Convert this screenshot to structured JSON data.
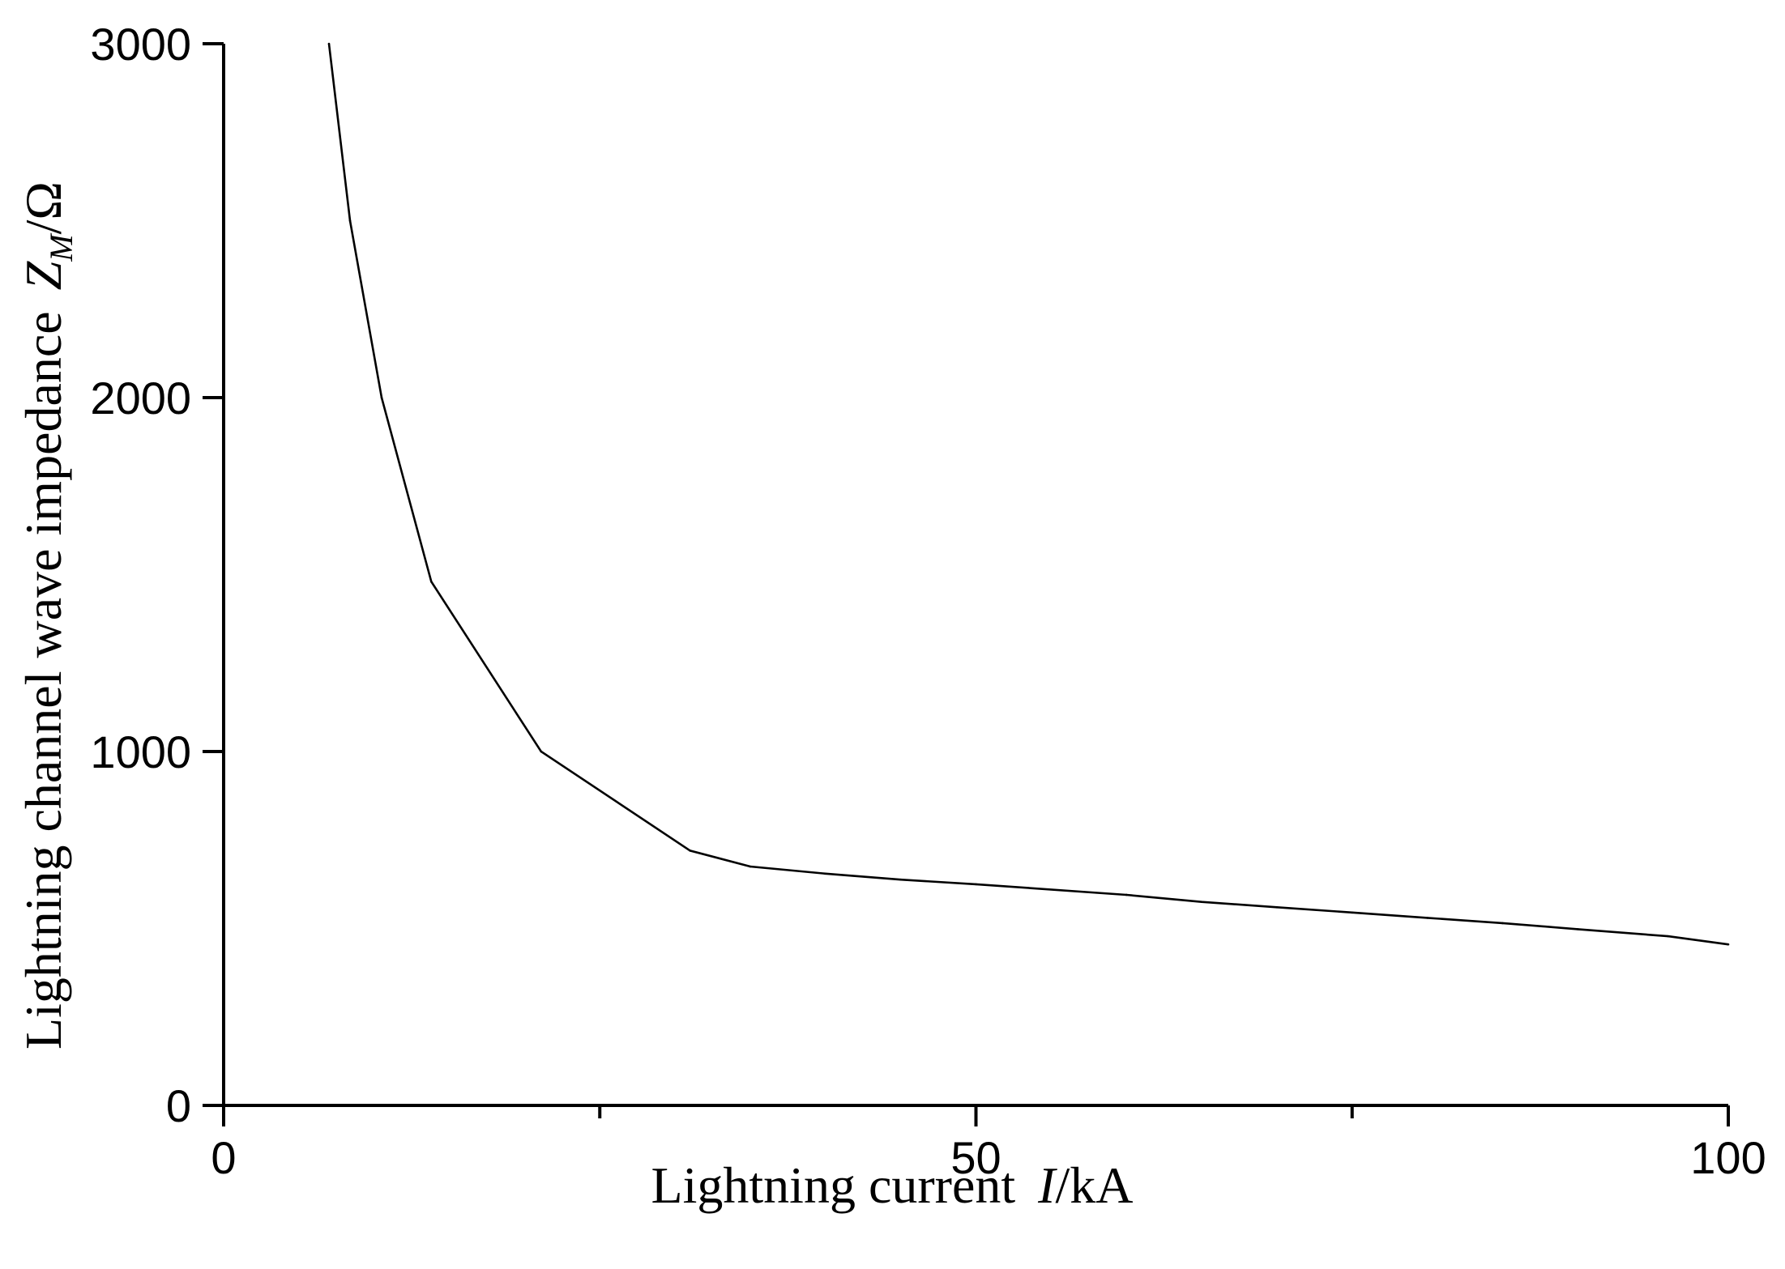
{
  "chart_data": {
    "type": "line",
    "title": "",
    "xlabel": {
      "main": "Lightning current",
      "var": "I",
      "unit": "/kA"
    },
    "ylabel": {
      "main": "Lightning channel wave impedance",
      "var": "Z",
      "sub": "M",
      "unit": "/Ω"
    },
    "xlim": [
      0,
      100
    ],
    "ylim": [
      0,
      3000
    ],
    "x_ticks": [
      {
        "value": 0,
        "label": "0"
      },
      {
        "value": 25,
        "label": ""
      },
      {
        "value": 50,
        "label": "50"
      },
      {
        "value": 75,
        "label": ""
      },
      {
        "value": 100,
        "label": "100"
      }
    ],
    "y_ticks": [
      {
        "value": 0,
        "label": "0"
      },
      {
        "value": 1000,
        "label": "1000"
      },
      {
        "value": 2000,
        "label": "2000"
      },
      {
        "value": 3000,
        "label": "3000"
      }
    ],
    "grid": false,
    "legend": "none",
    "series": [
      {
        "color": "#000000",
        "x": [
          7,
          8.4,
          10.5,
          13.8,
          21.1,
          31,
          35,
          40,
          45,
          50,
          60,
          65,
          70,
          75,
          80,
          85,
          90,
          96,
          100
        ],
        "y": [
          3000,
          2500,
          2000,
          1480,
          1000,
          720,
          675,
          655,
          638,
          625,
          595,
          575,
          560,
          545,
          530,
          515,
          498,
          478,
          455
        ]
      }
    ]
  }
}
